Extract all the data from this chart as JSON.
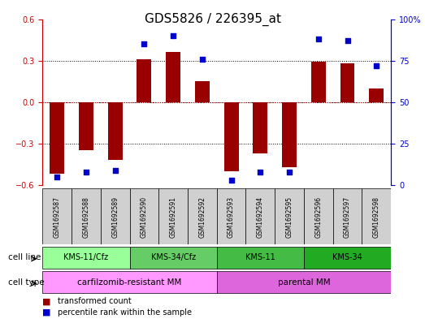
{
  "title": "GDS5826 / 226395_at",
  "samples": [
    "GSM1692587",
    "GSM1692588",
    "GSM1692589",
    "GSM1692590",
    "GSM1692591",
    "GSM1692592",
    "GSM1692593",
    "GSM1692594",
    "GSM1692595",
    "GSM1692596",
    "GSM1692597",
    "GSM1692598"
  ],
  "transformed_count": [
    -0.52,
    -0.35,
    -0.42,
    0.31,
    0.36,
    0.15,
    -0.5,
    -0.37,
    -0.47,
    0.29,
    0.28,
    0.1
  ],
  "percentile_rank": [
    5,
    8,
    9,
    85,
    90,
    76,
    3,
    8,
    8,
    88,
    87,
    72
  ],
  "bar_color": "#990000",
  "dot_color": "#0000cc",
  "ylim_left": [
    -0.6,
    0.6
  ],
  "ylim_right": [
    0,
    100
  ],
  "yticks_left": [
    -0.6,
    -0.3,
    0.0,
    0.3,
    0.6
  ],
  "yticks_right": [
    0,
    25,
    50,
    75,
    100
  ],
  "ytick_labels_right": [
    "0",
    "25",
    "50",
    "75",
    "100%"
  ],
  "cell_lines": [
    {
      "label": "KMS-11/Cfz",
      "start": 0,
      "end": 3,
      "color": "#99ff99"
    },
    {
      "label": "KMS-34/Cfz",
      "start": 3,
      "end": 6,
      "color": "#66cc66"
    },
    {
      "label": "KMS-11",
      "start": 6,
      "end": 9,
      "color": "#44bb44"
    },
    {
      "label": "KMS-34",
      "start": 9,
      "end": 12,
      "color": "#22aa22"
    }
  ],
  "cell_types": [
    {
      "label": "carfilzomib-resistant MM",
      "start": 0,
      "end": 6,
      "color": "#ff99ff"
    },
    {
      "label": "parental MM",
      "start": 6,
      "end": 12,
      "color": "#dd66dd"
    }
  ],
  "legend_items": [
    {
      "color": "#990000",
      "label": "transformed count"
    },
    {
      "color": "#0000cc",
      "label": "percentile rank within the sample"
    }
  ],
  "bg_color": "#ffffff",
  "plot_bg": "#ffffff",
  "grid_color": "#000000",
  "bar_width": 0.5,
  "cell_line_row_label": "cell line",
  "cell_type_row_label": "cell type",
  "title_fontsize": 11,
  "axis_fontsize": 8,
  "tick_fontsize": 7,
  "label_fontsize": 8
}
